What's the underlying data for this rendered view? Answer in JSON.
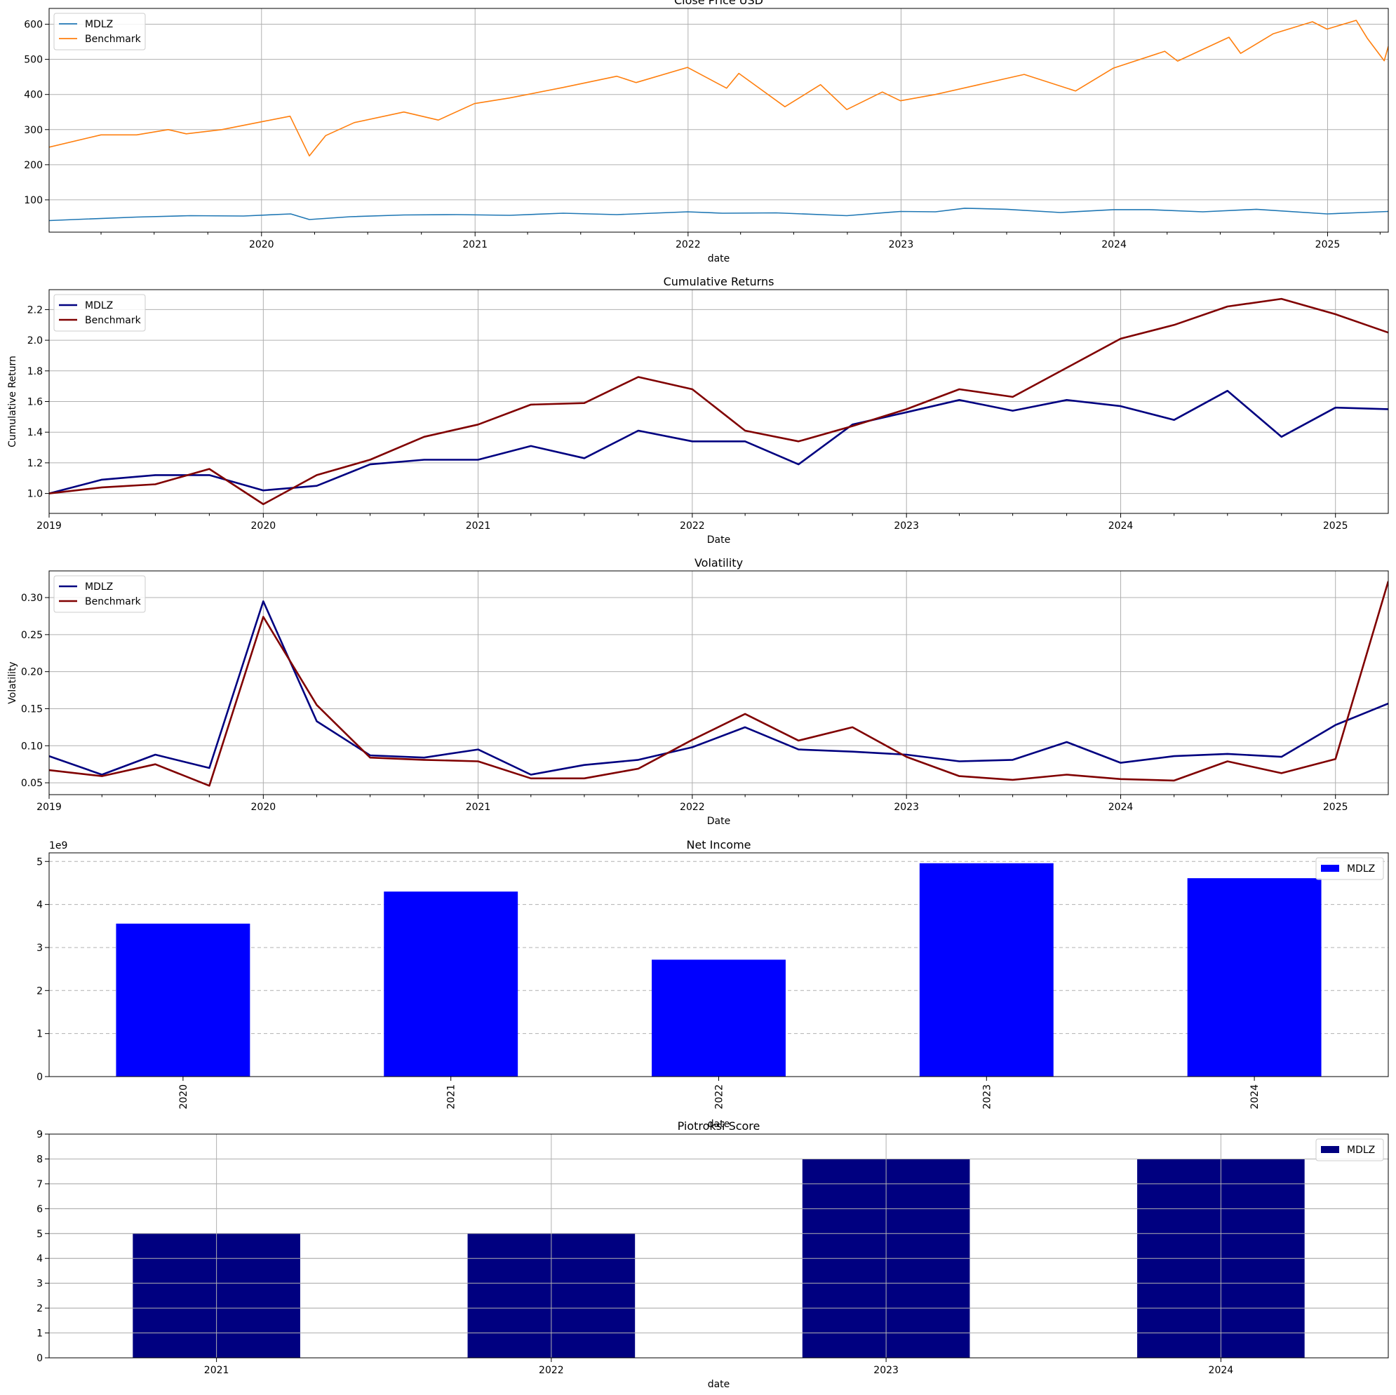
{
  "chart_data": [
    {
      "type": "line",
      "title": "Close Price USD",
      "xlabel": "date",
      "ylabel": "",
      "x_type": "date",
      "xlim": [
        "2019-01-02",
        "2025-04-15"
      ],
      "ylim": [
        8,
        645
      ],
      "xticks": [
        "2020",
        "2021",
        "2022",
        "2023",
        "2024",
        "2025"
      ],
      "yticks": [
        100,
        200,
        300,
        400,
        500,
        600
      ],
      "grid": "both",
      "legend": "upper-left",
      "series": [
        {
          "name": "MDLZ",
          "color": "#1f77b4",
          "points": [
            [
              "2019-01-02",
              41
            ],
            [
              "2019-03-01",
              45
            ],
            [
              "2019-06-01",
              51
            ],
            [
              "2019-09-01",
              55
            ],
            [
              "2019-12-01",
              54
            ],
            [
              "2020-02-20",
              60
            ],
            [
              "2020-03-23",
              44
            ],
            [
              "2020-06-01",
              52
            ],
            [
              "2020-09-01",
              57
            ],
            [
              "2020-12-01",
              58
            ],
            [
              "2021-03-01",
              56
            ],
            [
              "2021-06-01",
              62
            ],
            [
              "2021-09-01",
              58
            ],
            [
              "2021-12-31",
              66
            ],
            [
              "2022-03-01",
              62
            ],
            [
              "2022-06-01",
              63
            ],
            [
              "2022-09-30",
              55
            ],
            [
              "2022-12-31",
              67
            ],
            [
              "2023-03-01",
              66
            ],
            [
              "2023-04-20",
              76
            ],
            [
              "2023-07-01",
              73
            ],
            [
              "2023-10-01",
              64
            ],
            [
              "2023-12-31",
              72
            ],
            [
              "2024-03-01",
              72
            ],
            [
              "2024-06-01",
              66
            ],
            [
              "2024-09-01",
              73
            ],
            [
              "2024-12-31",
              60
            ],
            [
              "2025-03-01",
              64
            ],
            [
              "2025-04-15",
              67
            ]
          ]
        },
        {
          "name": "Benchmark",
          "color": "#ff7f0e",
          "points": [
            [
              "2019-01-02",
              250
            ],
            [
              "2019-04-01",
              285
            ],
            [
              "2019-06-01",
              285
            ],
            [
              "2019-07-25",
              300
            ],
            [
              "2019-08-25",
              288
            ],
            [
              "2019-10-25",
              300
            ],
            [
              "2019-12-31",
              322
            ],
            [
              "2020-02-19",
              338
            ],
            [
              "2020-03-23",
              225
            ],
            [
              "2020-04-20",
              283
            ],
            [
              "2020-06-08",
              320
            ],
            [
              "2020-09-01",
              350
            ],
            [
              "2020-10-30",
              327
            ],
            [
              "2020-12-31",
              374
            ],
            [
              "2021-03-01",
              390
            ],
            [
              "2021-06-01",
              420
            ],
            [
              "2021-09-01",
              452
            ],
            [
              "2021-10-04",
              434
            ],
            [
              "2021-12-31",
              477
            ],
            [
              "2022-03-08",
              418
            ],
            [
              "2022-03-29",
              460
            ],
            [
              "2022-06-16",
              365
            ],
            [
              "2022-08-16",
              428
            ],
            [
              "2022-09-30",
              357
            ],
            [
              "2022-11-30",
              407
            ],
            [
              "2022-12-31",
              382
            ],
            [
              "2023-03-01",
              400
            ],
            [
              "2023-07-31",
              457
            ],
            [
              "2023-10-27",
              410
            ],
            [
              "2023-12-31",
              475
            ],
            [
              "2024-03-28",
              523
            ],
            [
              "2024-04-19",
              495
            ],
            [
              "2024-07-16",
              563
            ],
            [
              "2024-08-05",
              517
            ],
            [
              "2024-09-30",
              573
            ],
            [
              "2024-12-06",
              607
            ],
            [
              "2024-12-31",
              586
            ],
            [
              "2025-02-19",
              611
            ],
            [
              "2025-03-10",
              560
            ],
            [
              "2025-04-08",
              496
            ],
            [
              "2025-04-15",
              537
            ]
          ]
        }
      ]
    },
    {
      "type": "line",
      "title": "Cumulative Returns",
      "xlabel": "Date",
      "ylabel": "Cumulative Return",
      "x_type": "date",
      "xlim": [
        "2019-01-01",
        "2025-04-01"
      ],
      "ylim": [
        0.87,
        2.33
      ],
      "xticks": [
        "2019",
        "2020",
        "2021",
        "2022",
        "2023",
        "2024",
        "2025"
      ],
      "yticks": [
        "1.0",
        "1.2",
        "1.4",
        "1.6",
        "1.8",
        "2.0",
        "2.2"
      ],
      "grid": "both",
      "legend": "upper-left",
      "x": [
        "2019-01-01",
        "2019-04-01",
        "2019-07-01",
        "2019-10-01",
        "2020-01-01",
        "2020-04-01",
        "2020-07-01",
        "2020-10-01",
        "2021-01-01",
        "2021-04-01",
        "2021-07-01",
        "2021-10-01",
        "2022-01-01",
        "2022-04-01",
        "2022-07-01",
        "2022-10-01",
        "2023-01-01",
        "2023-04-01",
        "2023-07-01",
        "2023-10-01",
        "2024-01-01",
        "2024-04-01",
        "2024-07-01",
        "2024-10-01",
        "2025-01-01",
        "2025-04-01"
      ],
      "series": [
        {
          "name": "MDLZ",
          "color": "#000080",
          "values": [
            1.0,
            1.09,
            1.12,
            1.12,
            1.02,
            1.05,
            1.19,
            1.22,
            1.22,
            1.31,
            1.23,
            1.41,
            1.34,
            1.34,
            1.19,
            1.45,
            1.53,
            1.61,
            1.54,
            1.61,
            1.57,
            1.48,
            1.67,
            1.37,
            1.56,
            1.55
          ]
        },
        {
          "name": "Benchmark",
          "color": "#800000",
          "values": [
            1.0,
            1.04,
            1.06,
            1.16,
            0.93,
            1.12,
            1.22,
            1.37,
            1.45,
            1.58,
            1.59,
            1.76,
            1.68,
            1.41,
            1.34,
            1.44,
            1.55,
            1.68,
            1.63,
            1.82,
            2.01,
            2.1,
            2.22,
            2.27,
            2.17,
            2.05
          ]
        }
      ]
    },
    {
      "type": "line",
      "title": "Volatility",
      "xlabel": "Date",
      "ylabel": "Volatility",
      "x_type": "date",
      "xlim": [
        "2019-01-01",
        "2025-04-01"
      ],
      "ylim": [
        0.034,
        0.336
      ],
      "xticks": [
        "2019",
        "2020",
        "2021",
        "2022",
        "2023",
        "2024",
        "2025"
      ],
      "yticks": [
        "0.05",
        "0.10",
        "0.15",
        "0.20",
        "0.25",
        "0.30"
      ],
      "grid": "both",
      "legend": "upper-left",
      "x": [
        "2019-01-01",
        "2019-04-01",
        "2019-07-01",
        "2019-10-01",
        "2020-01-01",
        "2020-04-01",
        "2020-07-01",
        "2020-10-01",
        "2021-01-01",
        "2021-04-01",
        "2021-07-01",
        "2021-10-01",
        "2022-01-01",
        "2022-04-01",
        "2022-07-01",
        "2022-10-01",
        "2023-01-01",
        "2023-04-01",
        "2023-07-01",
        "2023-10-01",
        "2024-01-01",
        "2024-04-01",
        "2024-07-01",
        "2024-10-01",
        "2025-01-01",
        "2025-04-01"
      ],
      "series": [
        {
          "name": "MDLZ",
          "color": "#000080",
          "values": [
            0.086,
            0.061,
            0.088,
            0.07,
            0.295,
            0.133,
            0.087,
            0.084,
            0.095,
            0.061,
            0.074,
            0.081,
            0.098,
            0.125,
            0.095,
            0.092,
            0.088,
            0.079,
            0.081,
            0.105,
            0.077,
            0.086,
            0.089,
            0.085,
            0.128,
            0.157
          ]
        },
        {
          "name": "Benchmark",
          "color": "#800000",
          "values": [
            0.067,
            0.059,
            0.075,
            0.046,
            0.274,
            0.155,
            0.084,
            0.081,
            0.079,
            0.056,
            0.056,
            0.069,
            0.108,
            0.143,
            0.107,
            0.125,
            0.085,
            0.059,
            0.054,
            0.061,
            0.055,
            0.053,
            0.079,
            0.063,
            0.082,
            0.322
          ]
        }
      ]
    },
    {
      "type": "bar",
      "title": "Net Income",
      "xlabel": "date",
      "ylabel": "",
      "offset_text": "1e9",
      "categories": [
        "2020",
        "2021",
        "2022",
        "2023",
        "2024"
      ],
      "ylim": [
        0,
        5.2
      ],
      "yticks": [
        0,
        1,
        2,
        3,
        4,
        5
      ],
      "grid": "y-dashed",
      "legend": "upper-right",
      "xtick_rotation": 90,
      "series": [
        {
          "name": "MDLZ",
          "color": "#0000ff",
          "values": [
            3.555,
            4.3,
            2.717,
            4.959,
            4.611
          ]
        }
      ]
    },
    {
      "type": "bar",
      "title": "Piotroksi Score",
      "xlabel": "date",
      "ylabel": "",
      "categories": [
        "2021",
        "2022",
        "2023",
        "2024"
      ],
      "ylim": [
        0,
        9
      ],
      "yticks": [
        0,
        1,
        2,
        3,
        4,
        5,
        6,
        7,
        8,
        9
      ],
      "grid": "both",
      "legend": "upper-right",
      "series": [
        {
          "name": "MDLZ",
          "color": "#000080",
          "values": [
            5,
            5,
            8,
            8
          ]
        }
      ]
    }
  ]
}
